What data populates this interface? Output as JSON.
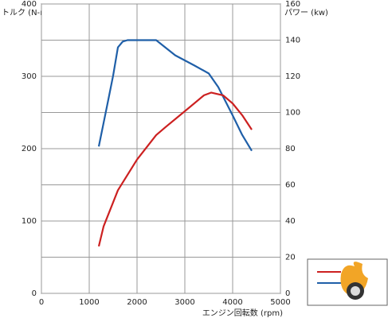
{
  "chart_data": {
    "type": "line",
    "title_left": "トルク (N-m)",
    "title_right": "パワー (kw)",
    "x_label": "エンジン回転数 (rpm)",
    "xlim": [
      0,
      5000
    ],
    "xticks": [
      0,
      1000,
      2000,
      3000,
      4000,
      5000
    ],
    "ylim": [
      0,
      400
    ],
    "yticks": [
      0,
      100,
      200,
      300,
      400
    ],
    "y2lim": [
      0,
      160
    ],
    "y2ticks": [
      0,
      20,
      40,
      60,
      80,
      100,
      120,
      140,
      160
    ],
    "grid": true,
    "series": [
      {
        "color": "#1f5fa8",
        "axis": "y",
        "x": [
          1200,
          1400,
          1500,
          1600,
          1700,
          1800,
          2000,
          2400,
          2800,
          3200,
          3500,
          3700,
          4000,
          4200,
          4400
        ],
        "values": [
          203,
          268,
          301,
          340,
          348,
          350,
          350,
          350,
          329,
          315,
          304,
          285,
          246,
          219,
          197
        ]
      },
      {
        "color": "#cc2020",
        "axis": "y2",
        "x": [
          1200,
          1300,
          1600,
          2000,
          2400,
          2600,
          3000,
          3400,
          3550,
          3800,
          4000,
          4200,
          4400
        ],
        "values": [
          26,
          37,
          57,
          74,
          87.5,
          92,
          100.7,
          109.5,
          111,
          109.5,
          105,
          98.5,
          90.5
        ]
      }
    ]
  }
}
